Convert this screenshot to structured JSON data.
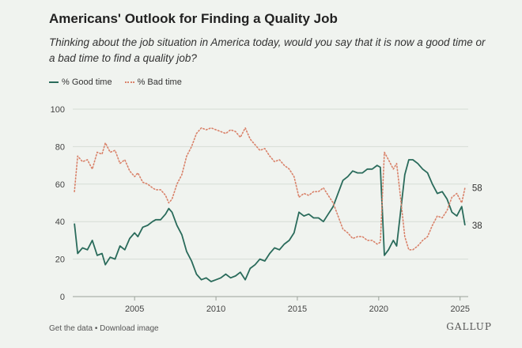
{
  "title": "Americans' Outlook for Finding a Quality Job",
  "subtitle": "Thinking about the job situation in America today, would you say that it is now a good time or a bad time to find a quality job?",
  "footer": {
    "get_data": "Get the data",
    "separator": " • ",
    "download": "Download image"
  },
  "logo": "GALLUP",
  "colors": {
    "good": "#2a6b5b",
    "bad": "#d9826a",
    "grid": "#d6ddd6",
    "text": "#444444"
  },
  "chart_data": {
    "type": "line",
    "title": "Americans' Outlook for Finding a Quality Job",
    "xlabel": "",
    "ylabel": "",
    "xlim": [
      2001.2,
      2025.5
    ],
    "ylim": [
      0,
      100
    ],
    "yticks": [
      0,
      20,
      40,
      60,
      80,
      100
    ],
    "xticks": [
      2005,
      2010,
      2015,
      2020,
      2025
    ],
    "legend_position": "top-left",
    "series": [
      {
        "name": "% Good time",
        "style": "solid",
        "color": "#2a6b5b",
        "end_label": "38",
        "points": [
          [
            2001.3,
            39
          ],
          [
            2001.5,
            23
          ],
          [
            2001.8,
            26
          ],
          [
            2002.1,
            25
          ],
          [
            2002.4,
            30
          ],
          [
            2002.7,
            22
          ],
          [
            2003.0,
            23
          ],
          [
            2003.2,
            17
          ],
          [
            2003.5,
            21
          ],
          [
            2003.8,
            20
          ],
          [
            2004.1,
            27
          ],
          [
            2004.4,
            25
          ],
          [
            2004.7,
            31
          ],
          [
            2005.0,
            34
          ],
          [
            2005.2,
            32
          ],
          [
            2005.5,
            37
          ],
          [
            2005.8,
            38
          ],
          [
            2006.1,
            40
          ],
          [
            2006.3,
            41
          ],
          [
            2006.6,
            41
          ],
          [
            2006.9,
            44
          ],
          [
            2007.1,
            47
          ],
          [
            2007.3,
            45
          ],
          [
            2007.6,
            38
          ],
          [
            2007.9,
            33
          ],
          [
            2008.2,
            24
          ],
          [
            2008.5,
            19
          ],
          [
            2008.8,
            12
          ],
          [
            2009.1,
            9
          ],
          [
            2009.4,
            10
          ],
          [
            2009.7,
            8
          ],
          [
            2010.0,
            9
          ],
          [
            2010.3,
            10
          ],
          [
            2010.6,
            12
          ],
          [
            2010.9,
            10
          ],
          [
            2011.2,
            11
          ],
          [
            2011.5,
            13
          ],
          [
            2011.8,
            9
          ],
          [
            2012.1,
            15
          ],
          [
            2012.4,
            17
          ],
          [
            2012.7,
            20
          ],
          [
            2013.0,
            19
          ],
          [
            2013.3,
            23
          ],
          [
            2013.6,
            26
          ],
          [
            2013.9,
            25
          ],
          [
            2014.2,
            28
          ],
          [
            2014.5,
            30
          ],
          [
            2014.8,
            34
          ],
          [
            2015.1,
            45
          ],
          [
            2015.4,
            43
          ],
          [
            2015.7,
            44
          ],
          [
            2016.0,
            42
          ],
          [
            2016.3,
            42
          ],
          [
            2016.6,
            40
          ],
          [
            2016.9,
            44
          ],
          [
            2017.2,
            48
          ],
          [
            2017.5,
            55
          ],
          [
            2017.8,
            62
          ],
          [
            2018.1,
            64
          ],
          [
            2018.4,
            67
          ],
          [
            2018.7,
            66
          ],
          [
            2019.0,
            66
          ],
          [
            2019.3,
            68
          ],
          [
            2019.6,
            68
          ],
          [
            2019.9,
            70
          ],
          [
            2020.1,
            69
          ],
          [
            2020.35,
            22
          ],
          [
            2020.6,
            25
          ],
          [
            2020.9,
            30
          ],
          [
            2021.1,
            27
          ],
          [
            2021.3,
            42
          ],
          [
            2021.6,
            65
          ],
          [
            2021.85,
            73
          ],
          [
            2022.1,
            73
          ],
          [
            2022.4,
            71
          ],
          [
            2022.7,
            68
          ],
          [
            2023.0,
            66
          ],
          [
            2023.3,
            60
          ],
          [
            2023.6,
            55
          ],
          [
            2023.9,
            56
          ],
          [
            2024.2,
            52
          ],
          [
            2024.5,
            45
          ],
          [
            2024.8,
            43
          ],
          [
            2025.1,
            48
          ],
          [
            2025.3,
            38
          ]
        ]
      },
      {
        "name": "% Bad time",
        "style": "dotted",
        "color": "#d9826a",
        "end_label": "58",
        "points": [
          [
            2001.3,
            56
          ],
          [
            2001.5,
            75
          ],
          [
            2001.8,
            72
          ],
          [
            2002.1,
            73
          ],
          [
            2002.4,
            68
          ],
          [
            2002.7,
            77
          ],
          [
            2003.0,
            76
          ],
          [
            2003.2,
            82
          ],
          [
            2003.5,
            77
          ],
          [
            2003.8,
            78
          ],
          [
            2004.1,
            71
          ],
          [
            2004.4,
            73
          ],
          [
            2004.7,
            67
          ],
          [
            2005.0,
            64
          ],
          [
            2005.2,
            66
          ],
          [
            2005.5,
            61
          ],
          [
            2005.8,
            60
          ],
          [
            2006.1,
            58
          ],
          [
            2006.3,
            57
          ],
          [
            2006.6,
            57
          ],
          [
            2006.9,
            54
          ],
          [
            2007.1,
            50
          ],
          [
            2007.3,
            52
          ],
          [
            2007.6,
            60
          ],
          [
            2007.9,
            65
          ],
          [
            2008.2,
            75
          ],
          [
            2008.5,
            80
          ],
          [
            2008.8,
            87
          ],
          [
            2009.1,
            90
          ],
          [
            2009.4,
            89
          ],
          [
            2009.7,
            90
          ],
          [
            2010.0,
            89
          ],
          [
            2010.3,
            88
          ],
          [
            2010.6,
            87
          ],
          [
            2010.9,
            89
          ],
          [
            2011.2,
            88
          ],
          [
            2011.5,
            85
          ],
          [
            2011.8,
            90
          ],
          [
            2012.1,
            84
          ],
          [
            2012.4,
            81
          ],
          [
            2012.7,
            78
          ],
          [
            2013.0,
            79
          ],
          [
            2013.3,
            75
          ],
          [
            2013.6,
            72
          ],
          [
            2013.9,
            73
          ],
          [
            2014.2,
            70
          ],
          [
            2014.5,
            68
          ],
          [
            2014.8,
            64
          ],
          [
            2015.1,
            53
          ],
          [
            2015.4,
            55
          ],
          [
            2015.7,
            54
          ],
          [
            2016.0,
            56
          ],
          [
            2016.3,
            56
          ],
          [
            2016.6,
            58
          ],
          [
            2016.9,
            54
          ],
          [
            2017.2,
            50
          ],
          [
            2017.5,
            43
          ],
          [
            2017.8,
            36
          ],
          [
            2018.1,
            34
          ],
          [
            2018.4,
            31
          ],
          [
            2018.7,
            32
          ],
          [
            2019.0,
            32
          ],
          [
            2019.3,
            30
          ],
          [
            2019.6,
            30
          ],
          [
            2019.9,
            28
          ],
          [
            2020.1,
            29
          ],
          [
            2020.35,
            77
          ],
          [
            2020.6,
            73
          ],
          [
            2020.9,
            68
          ],
          [
            2021.1,
            71
          ],
          [
            2021.3,
            56
          ],
          [
            2021.6,
            32
          ],
          [
            2021.85,
            25
          ],
          [
            2022.1,
            25
          ],
          [
            2022.4,
            27
          ],
          [
            2022.7,
            30
          ],
          [
            2023.0,
            32
          ],
          [
            2023.3,
            38
          ],
          [
            2023.6,
            43
          ],
          [
            2023.9,
            42
          ],
          [
            2024.2,
            46
          ],
          [
            2024.5,
            53
          ],
          [
            2024.8,
            55
          ],
          [
            2025.1,
            50
          ],
          [
            2025.3,
            58
          ]
        ]
      }
    ]
  }
}
